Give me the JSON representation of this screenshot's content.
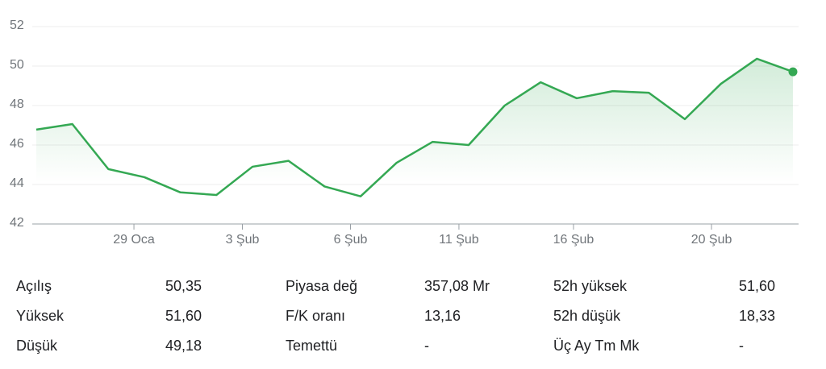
{
  "chart_data": {
    "type": "line",
    "values": [
      46.78,
      47.06,
      44.78,
      44.37,
      43.6,
      43.47,
      44.9,
      45.2,
      43.9,
      43.4,
      45.1,
      46.16,
      46.0,
      48.0,
      49.18,
      48.37,
      48.73,
      48.65,
      47.31,
      49.1,
      50.37,
      49.71
    ],
    "color": "#34a853",
    "xlim": [
      0,
      21
    ],
    "xticks": [
      {
        "value": 2.71,
        "label": "29 Oca"
      },
      {
        "value": 5.72,
        "label": "3 Şub"
      },
      {
        "value": 8.72,
        "label": "6 Şub"
      },
      {
        "value": 11.73,
        "label": "11 Şub"
      },
      {
        "value": 14.91,
        "label": "16 Şub"
      },
      {
        "value": 18.74,
        "label": "20 Şub"
      }
    ],
    "ylim": [
      42,
      52
    ],
    "yticks": [
      42,
      44,
      46,
      48,
      50,
      52
    ],
    "grid": true
  },
  "stats": {
    "rows": [
      [
        {
          "label": "Açılış",
          "value": "50,35"
        },
        {
          "label": "Piyasa değ",
          "value": "357,08 Mr"
        },
        {
          "label": "52h yüksek",
          "value": "51,60"
        }
      ],
      [
        {
          "label": "Yüksek",
          "value": "51,60"
        },
        {
          "label": "F/K oranı",
          "value": "13,16"
        },
        {
          "label": "52h düşük",
          "value": "18,33"
        }
      ],
      [
        {
          "label": "Düşük",
          "value": "49,18"
        },
        {
          "label": "Temettü",
          "value": "-"
        },
        {
          "label": "Üç Ay Tm Mk",
          "value": "-"
        }
      ]
    ]
  }
}
